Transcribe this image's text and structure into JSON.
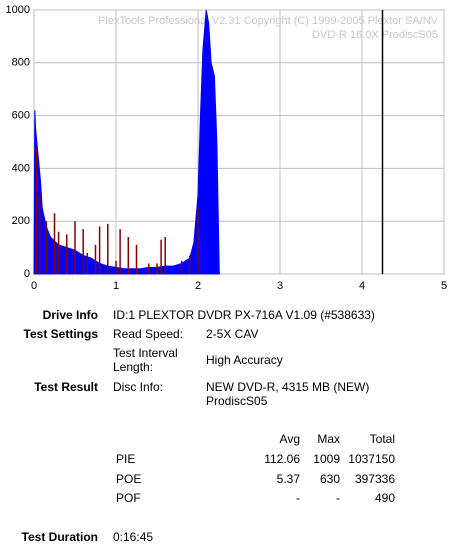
{
  "chart_data": {
    "type": "area",
    "watermark": [
      "PlexTools Professional V2.31 Copyright (C) 1999-2005 Plextor SA/NV",
      "DVD-R    16.0X    ProdiscS05"
    ],
    "xlim": [
      0,
      5
    ],
    "xticks": [
      0,
      1,
      2,
      3,
      4,
      5
    ],
    "ylim": [
      0,
      1000
    ],
    "yticks": [
      0,
      200,
      400,
      600,
      800,
      1000
    ],
    "grid": true,
    "end_marker": 4.25,
    "series": [
      {
        "name": "PIE",
        "color": "#0000ff",
        "x": [
          0,
          0.01,
          0.02,
          0.05,
          0.08,
          0.1,
          0.15,
          0.2,
          0.3,
          0.4,
          0.5,
          0.6,
          0.7,
          0.8,
          0.9,
          1.0,
          1.1,
          1.2,
          1.3,
          1.4,
          1.5,
          1.6,
          1.7,
          1.8,
          1.9,
          1.95,
          2.0,
          2.03,
          2.06,
          2.1,
          2.13,
          2.16,
          2.2,
          2.23,
          2.26
        ],
        "values": [
          0,
          620,
          550,
          450,
          350,
          250,
          180,
          140,
          110,
          100,
          90,
          70,
          60,
          40,
          30,
          25,
          20,
          20,
          20,
          25,
          25,
          30,
          30,
          40,
          60,
          120,
          300,
          600,
          850,
          1000,
          950,
          800,
          750,
          500,
          0
        ]
      },
      {
        "name": "POE",
        "color": "#8b0000",
        "x": [
          0.03,
          0.07,
          0.15,
          0.25,
          0.3,
          0.4,
          0.5,
          0.6,
          0.65,
          0.75,
          0.8,
          0.9,
          1.0,
          1.05,
          1.15,
          1.25,
          1.4,
          1.5,
          1.55,
          1.6,
          1.8,
          1.9,
          2.0
        ],
        "values": [
          480,
          300,
          200,
          230,
          160,
          150,
          200,
          170,
          80,
          110,
          180,
          190,
          50,
          170,
          140,
          110,
          40,
          40,
          130,
          140,
          50,
          70,
          250
        ]
      }
    ]
  },
  "report": {
    "drive_info": {
      "label": "Drive Info",
      "value": "ID:1 PLEXTOR DVDR PX-716A V1.09 (#538633)"
    },
    "test_settings": {
      "label": "Test Settings",
      "rows": [
        [
          "Read Speed:",
          "2-5X CAV"
        ],
        [
          "Test Interval Length:",
          "High Accuracy"
        ]
      ]
    },
    "test_result": {
      "label": "Test Result",
      "key": "Disc Info:",
      "value": "NEW DVD-R, 4315 MB (NEW) ProdiscS05"
    },
    "stats": {
      "header": [
        "Avg",
        "Max",
        "Total"
      ],
      "rows": [
        [
          "PIE",
          112.06,
          1009,
          1037150
        ],
        [
          "POE",
          5.37,
          630,
          397336
        ],
        [
          "POF",
          "-",
          "-",
          490
        ]
      ]
    },
    "test_duration": {
      "label": "Test Duration",
      "value": "0:16:45"
    }
  }
}
